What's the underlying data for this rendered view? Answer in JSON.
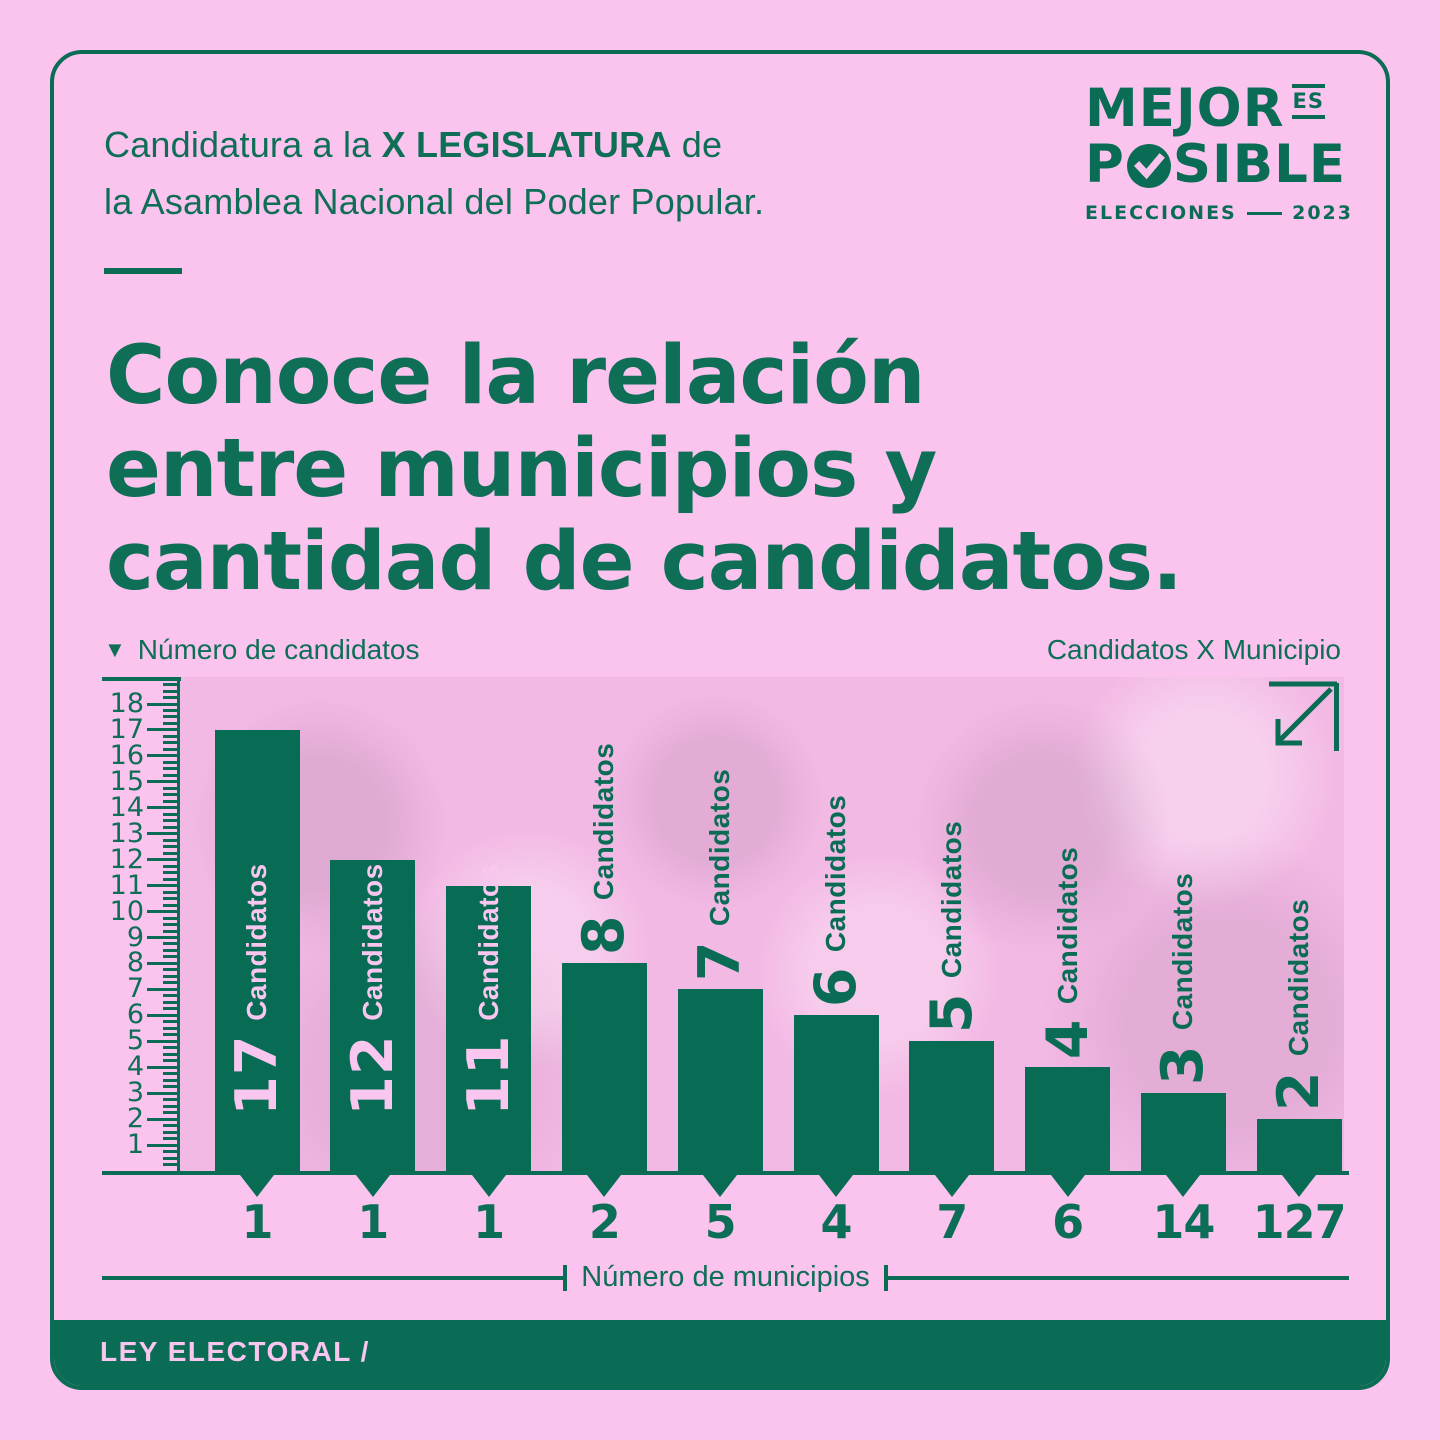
{
  "header": {
    "kicker": {
      "pre": "Candidatura a la ",
      "bold": "X LEGISLATURA",
      "post": " de",
      "line2": "la Asamblea Nacional del Poder Popular."
    }
  },
  "logo": {
    "mejor": "MEJOR",
    "es": "ES",
    "posible_p": "P",
    "posible_rest": "SIBLE",
    "sub_left": "ELECCIONES",
    "sub_year": "2023"
  },
  "title": {
    "lines": [
      "Conoce la relación",
      "entre municipios y",
      "cantidad de candidatos."
    ]
  },
  "chart_data": {
    "type": "bar",
    "title": "Conoce la relación entre municipios y cantidad de candidatos.",
    "ylabel": "Número de candidatos",
    "y_axis_marker": "▼",
    "right_label": "Candidatos X Municipio",
    "xlabel": "Número de municipios",
    "categories": [
      "1",
      "1",
      "1",
      "2",
      "5",
      "4",
      "7",
      "6",
      "14",
      "127"
    ],
    "values": [
      17,
      12,
      11,
      8,
      7,
      6,
      5,
      4,
      3,
      2
    ],
    "bar_value_word": "Candidatos",
    "label_placement": [
      "inside",
      "inside",
      "inside",
      "above",
      "above",
      "above",
      "above",
      "above",
      "above",
      "above"
    ],
    "ylim": [
      0,
      18
    ],
    "y_ticks": [
      1,
      2,
      3,
      4,
      5,
      6,
      7,
      8,
      9,
      10,
      11,
      12,
      13,
      14,
      15,
      16,
      17,
      18
    ],
    "grid": false,
    "legend": false
  },
  "footer": {
    "label": "LEY ELECTORAL /"
  },
  "colors": {
    "green": "#0A6C54",
    "bar_green": "#086C54",
    "page_pink": "#FBC4EF",
    "photo_pink": "#F3B9E5",
    "label_pink": "#F9C6EF"
  }
}
